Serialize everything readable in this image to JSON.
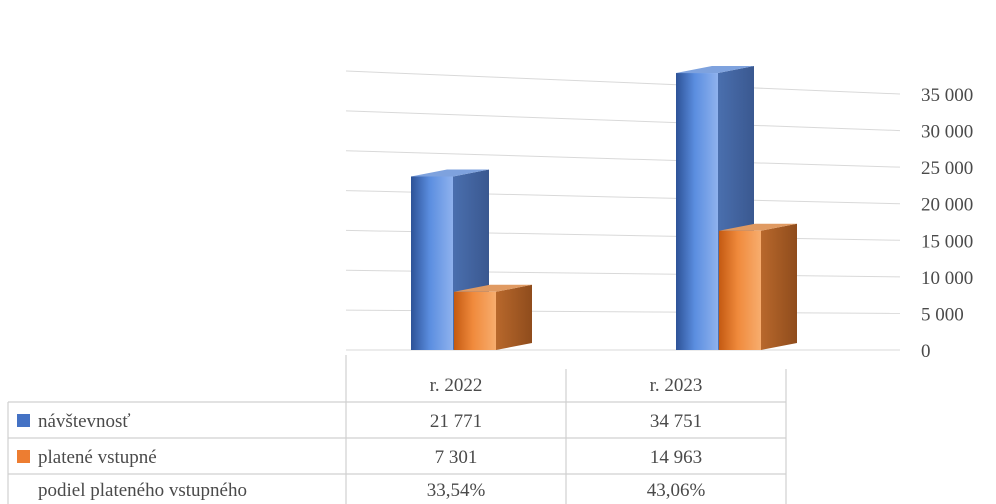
{
  "chart_data": {
    "type": "bar",
    "title": "",
    "xlabel": "",
    "ylabel": "",
    "categories": [
      "r. 2022",
      "r. 2023"
    ],
    "series": [
      {
        "name": "návštevnosť",
        "values": [
          21771,
          34751
        ],
        "color": "#4472c4"
      },
      {
        "name": "platené vstupné",
        "values": [
          7301,
          14963
        ],
        "color": "#ed7d31"
      }
    ],
    "y_ticks": [
      "35 000",
      "30 000",
      "25 000",
      "20 000",
      "15 000",
      "10 000",
      "5 000",
      "0"
    ],
    "ylim": [
      0,
      35000
    ],
    "grid": true,
    "legend": "data-table",
    "data_table": {
      "rows": [
        {
          "label": "návštevnosť",
          "values": [
            "21 771",
            "34 751"
          ],
          "key": "návštevnosť"
        },
        {
          "label": "platené vstupné",
          "values": [
            "7 301",
            "14 963"
          ],
          "key": "platené vstupné"
        },
        {
          "label": "podiel plateného vstupného",
          "values": [
            "33,54%",
            "43,06%"
          ],
          "key": ""
        }
      ]
    }
  }
}
